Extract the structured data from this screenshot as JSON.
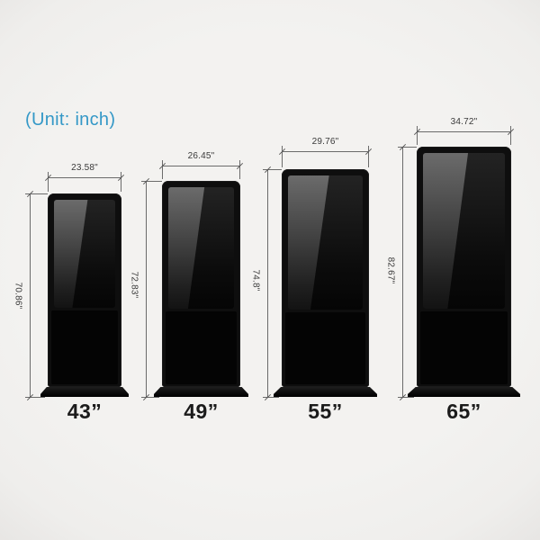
{
  "unit_label": "(Unit: inch)",
  "colors": {
    "accent": "#3498c7",
    "background": "#f2f1ef",
    "kiosk_black": "#0e0e0e",
    "dimension_line": "#6b6b6b"
  },
  "kiosks": [
    {
      "name": "43 inch kiosk",
      "size_label": "43”",
      "width_label": "23.58\"",
      "height_label": "70.86\""
    },
    {
      "name": "49 inch kiosk",
      "size_label": "49”",
      "width_label": "26.45\"",
      "height_label": "72.83\""
    },
    {
      "name": "55 inch kiosk",
      "size_label": "55”",
      "width_label": "29.76\"",
      "height_label": "74.8\""
    },
    {
      "name": "65 inch kiosk",
      "size_label": "65”",
      "width_label": "34.72\"",
      "height_label": "82.67\""
    }
  ]
}
